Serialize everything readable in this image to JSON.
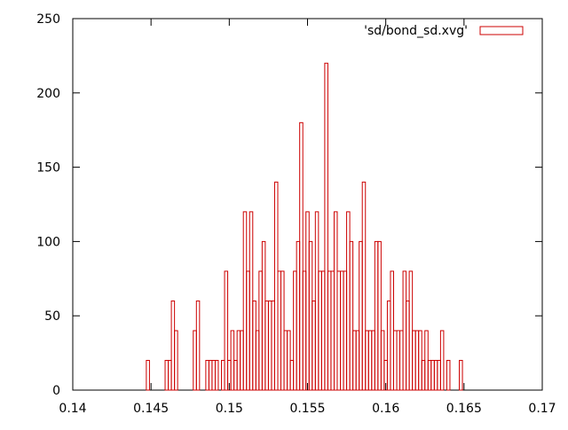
{
  "chart_data": {
    "type": "bar",
    "style": "histogram-steps",
    "title": "",
    "xlabel": "",
    "ylabel": "",
    "xlim": [
      0.14,
      0.17
    ],
    "ylim": [
      0,
      250
    ],
    "x_ticks": [
      "0.14",
      "0.145",
      "0.15",
      "0.155",
      "0.16",
      "0.165",
      "0.17"
    ],
    "y_ticks": [
      "0",
      "50",
      "100",
      "150",
      "200",
      "250"
    ],
    "bin_width": 0.0002,
    "legend": {
      "position": "top-right",
      "label": "'sd/bond_sd.xvg'"
    },
    "colors": {
      "series": "#cc0000",
      "axes": "#000000"
    },
    "series": [
      {
        "name": "'sd/bond_sd.xvg'",
        "x": [
          0.1448,
          0.146,
          0.1462,
          0.1464,
          0.1466,
          0.1478,
          0.148,
          0.1486,
          0.1488,
          0.149,
          0.1492,
          0.1496,
          0.1498,
          0.15,
          0.1502,
          0.1504,
          0.1506,
          0.1508,
          0.151,
          0.1512,
          0.1514,
          0.1516,
          0.1518,
          0.152,
          0.1522,
          0.1524,
          0.1526,
          0.1528,
          0.153,
          0.1532,
          0.1534,
          0.1536,
          0.1538,
          0.154,
          0.1542,
          0.1544,
          0.1546,
          0.1548,
          0.155,
          0.1552,
          0.1554,
          0.1556,
          0.1558,
          0.156,
          0.1562,
          0.1564,
          0.1566,
          0.1568,
          0.157,
          0.1572,
          0.1574,
          0.1576,
          0.1578,
          0.158,
          0.1582,
          0.1584,
          0.1586,
          0.1588,
          0.159,
          0.1592,
          0.1594,
          0.1596,
          0.1598,
          0.16,
          0.1602,
          0.1604,
          0.1606,
          0.1608,
          0.161,
          0.1612,
          0.1614,
          0.1616,
          0.1618,
          0.162,
          0.1622,
          0.1624,
          0.1626,
          0.1628,
          0.163,
          0.1632,
          0.1634,
          0.1636,
          0.164,
          0.1648
        ],
        "values": [
          20,
          20,
          20,
          60,
          40,
          40,
          60,
          20,
          20,
          20,
          20,
          20,
          80,
          20,
          40,
          20,
          40,
          40,
          120,
          80,
          120,
          60,
          40,
          80,
          100,
          60,
          60,
          60,
          140,
          80,
          80,
          40,
          40,
          20,
          80,
          100,
          180,
          80,
          120,
          100,
          60,
          120,
          80,
          80,
          220,
          80,
          80,
          120,
          80,
          80,
          80,
          120,
          100,
          40,
          40,
          100,
          140,
          40,
          40,
          40,
          100,
          100,
          40,
          20,
          60,
          80,
          40,
          40,
          40,
          80,
          60,
          80,
          40,
          40,
          40,
          20,
          40,
          20,
          20,
          20,
          20,
          40,
          20,
          20
        ]
      }
    ]
  }
}
